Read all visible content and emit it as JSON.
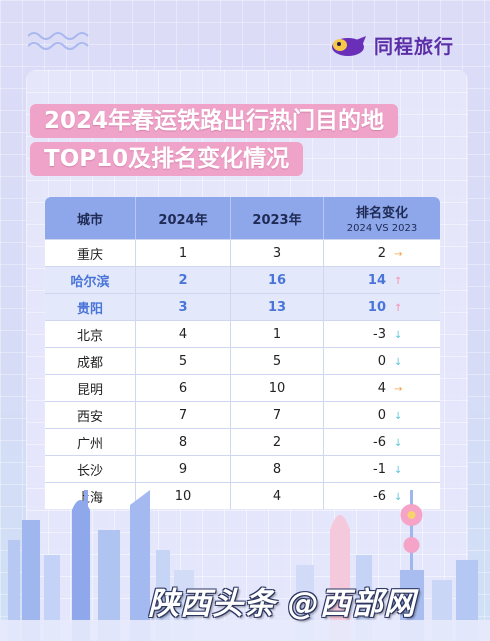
{
  "brand": {
    "name": "同程旅行"
  },
  "title": {
    "line1": "2024年春运铁路出行热门目的地",
    "line2": "TOP10及排名变化情况"
  },
  "table": {
    "headers": {
      "city": "城市",
      "y2024": "2024年",
      "y2023": "2023年",
      "change": "排名变化",
      "change_sub": "2024 VS 2023"
    },
    "rows": [
      {
        "city": "重庆",
        "r2024": "1",
        "r2023": "3",
        "change": "2",
        "trend": "right",
        "highlight": false
      },
      {
        "city": "哈尔滨",
        "r2024": "2",
        "r2023": "16",
        "change": "14",
        "trend": "up",
        "highlight": true
      },
      {
        "city": "贵阳",
        "r2024": "3",
        "r2023": "13",
        "change": "10",
        "trend": "up",
        "highlight": true
      },
      {
        "city": "北京",
        "r2024": "4",
        "r2023": "1",
        "change": "-3",
        "trend": "down",
        "highlight": false
      },
      {
        "city": "成都",
        "r2024": "5",
        "r2023": "5",
        "change": "0",
        "trend": "down",
        "highlight": false
      },
      {
        "city": "昆明",
        "r2024": "6",
        "r2023": "10",
        "change": "4",
        "trend": "right",
        "highlight": false
      },
      {
        "city": "西安",
        "r2024": "7",
        "r2023": "7",
        "change": "0",
        "trend": "down",
        "highlight": false
      },
      {
        "city": "广州",
        "r2024": "8",
        "r2023": "2",
        "change": "-6",
        "trend": "down",
        "highlight": false
      },
      {
        "city": "长沙",
        "r2024": "9",
        "r2023": "8",
        "change": "-1",
        "trend": "down",
        "highlight": false
      },
      {
        "city": "上海",
        "r2024": "10",
        "r2023": "4",
        "change": "-6",
        "trend": "down",
        "highlight": false
      }
    ]
  },
  "watermark": "陕西头条 @西部网",
  "colors": {
    "header_bg": "#8ea7ea",
    "highlight_text": "#4a74d8",
    "up_arrow": "#f4a3c4",
    "down_arrow": "#5fc6d8",
    "side_arrow": "#f6a24b",
    "title_bg": "#efa3c8"
  }
}
